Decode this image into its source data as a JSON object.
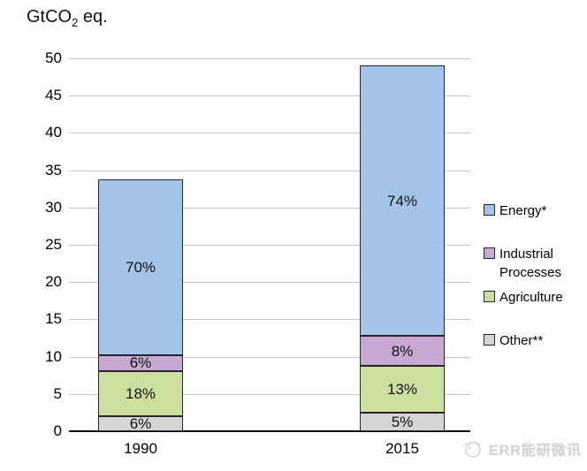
{
  "title": {
    "prefix": "GtCO",
    "sub": "2",
    "suffix": " eq."
  },
  "chart_data": {
    "type": "bar",
    "stacked": true,
    "title": "GtCO2 eq.",
    "xlabel": "",
    "ylabel": "GtCO2 eq.",
    "categories": [
      "1990",
      "2015"
    ],
    "totals": [
      33.8,
      49.0
    ],
    "series": [
      {
        "name": "Other**",
        "color": "#d5d5d5",
        "pct": [
          6,
          5
        ]
      },
      {
        "name": "Agriculture",
        "color": "#ccdfa1",
        "pct": [
          18,
          13
        ]
      },
      {
        "name": "Industrial Processes",
        "color": "#c8a9d2",
        "pct": [
          6,
          8
        ]
      },
      {
        "name": "Energy*",
        "color": "#a4c4e7",
        "pct": [
          70,
          74
        ]
      }
    ],
    "segment_labels": [
      [
        "6%",
        "18%",
        "6%",
        "70%"
      ],
      [
        "5%",
        "13%",
        "8%",
        "74%"
      ]
    ],
    "ylim": [
      0,
      50
    ],
    "ytick_step": 5,
    "yticks": [
      0,
      5,
      10,
      15,
      20,
      25,
      30,
      35,
      40,
      45,
      50
    ],
    "grid": true,
    "legend_position": "right",
    "legend_order": [
      "Energy*",
      "Industrial Processes",
      "Agriculture",
      "Other**"
    ]
  },
  "watermark": {
    "text": "ERR能研微讯"
  }
}
